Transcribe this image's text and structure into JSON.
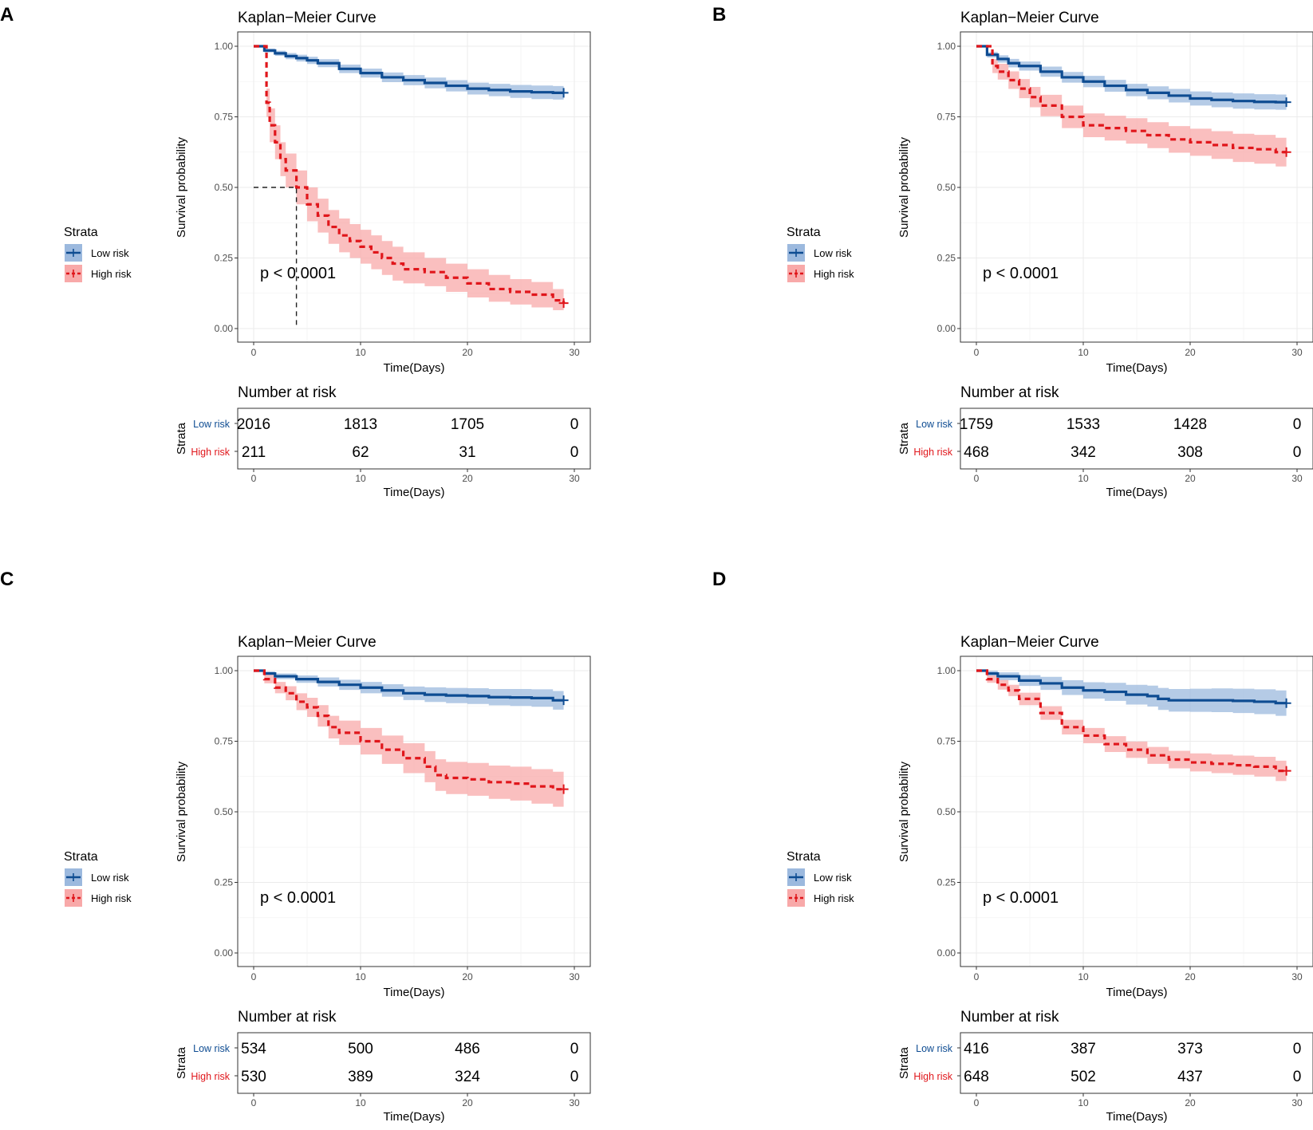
{
  "figure": {
    "common": {
      "title": "Kaplan−Meier Curve",
      "ylabel": "Survival probability",
      "xlabel": "Time(Days)",
      "legend_title": "Strata",
      "legend_labels": [
        "Low risk",
        "High risk"
      ],
      "risk_title": "Number at risk",
      "risk_ylabel": "Strata",
      "risk_row_labels": [
        "Low risk",
        "High risk"
      ],
      "pvalue": "p < 0.0001",
      "y_ticks": [
        "0.00",
        "0.25",
        "0.50",
        "0.75",
        "1.00"
      ],
      "x_ticks": [
        "0",
        "10",
        "20",
        "30"
      ],
      "colors": {
        "low": "#0E4C92",
        "low_band": "#9CB9DE",
        "high": "#E0161B",
        "high_band": "#F8A9A9"
      }
    }
  },
  "chart_data": [
    {
      "panel": "A",
      "type": "line",
      "title": "Kaplan−Meier Curve",
      "xlabel": "Time(Days)",
      "ylabel": "Survival probability",
      "xlim": [
        0,
        30
      ],
      "ylim": [
        0,
        1
      ],
      "pvalue": "p < 0.0001",
      "median_line": {
        "x": 4,
        "y": 0.5
      },
      "series": [
        {
          "name": "Low risk",
          "x": [
            0,
            1,
            2,
            3,
            4,
            5,
            6,
            8,
            10,
            12,
            14,
            16,
            18,
            20,
            22,
            24,
            26,
            28,
            29
          ],
          "y": [
            1.0,
            0.985,
            0.975,
            0.965,
            0.958,
            0.95,
            0.94,
            0.92,
            0.905,
            0.89,
            0.88,
            0.87,
            0.86,
            0.85,
            0.845,
            0.84,
            0.837,
            0.835,
            0.835
          ],
          "lower": [
            1.0,
            0.978,
            0.966,
            0.954,
            0.946,
            0.937,
            0.926,
            0.905,
            0.889,
            0.873,
            0.862,
            0.851,
            0.84,
            0.829,
            0.823,
            0.817,
            0.813,
            0.811,
            0.811
          ],
          "upper": [
            1.0,
            0.992,
            0.984,
            0.976,
            0.97,
            0.963,
            0.954,
            0.935,
            0.921,
            0.907,
            0.898,
            0.889,
            0.88,
            0.871,
            0.867,
            0.863,
            0.861,
            0.859,
            0.859
          ]
        },
        {
          "name": "High risk",
          "x": [
            0,
            1,
            1.2,
            1.5,
            2,
            2.5,
            3,
            4,
            5,
            6,
            7,
            8,
            9,
            10,
            11,
            12,
            13,
            14,
            16,
            18,
            20,
            22,
            24,
            26,
            28,
            29
          ],
          "y": [
            1.0,
            1.0,
            0.8,
            0.72,
            0.66,
            0.6,
            0.56,
            0.5,
            0.44,
            0.4,
            0.36,
            0.33,
            0.31,
            0.29,
            0.27,
            0.25,
            0.23,
            0.21,
            0.2,
            0.18,
            0.16,
            0.14,
            0.13,
            0.12,
            0.1,
            0.09
          ],
          "lower": [
            1.0,
            1.0,
            0.75,
            0.66,
            0.6,
            0.54,
            0.5,
            0.44,
            0.38,
            0.34,
            0.3,
            0.27,
            0.25,
            0.23,
            0.21,
            0.19,
            0.17,
            0.16,
            0.15,
            0.13,
            0.11,
            0.095,
            0.085,
            0.075,
            0.065,
            0.06
          ],
          "upper": [
            1.0,
            1.0,
            0.85,
            0.78,
            0.72,
            0.66,
            0.62,
            0.56,
            0.5,
            0.46,
            0.42,
            0.39,
            0.37,
            0.35,
            0.33,
            0.31,
            0.29,
            0.27,
            0.25,
            0.23,
            0.21,
            0.19,
            0.175,
            0.165,
            0.14,
            0.13
          ]
        }
      ],
      "risk_table": {
        "times": [
          0,
          10,
          20,
          30
        ],
        "low": [
          "2016",
          "1813",
          "1705",
          "0"
        ],
        "high": [
          "211",
          "62",
          "31",
          "0"
        ]
      }
    },
    {
      "panel": "B",
      "type": "line",
      "title": "Kaplan−Meier Curve",
      "xlabel": "Time(Days)",
      "ylabel": "Survival probability",
      "xlim": [
        0,
        30
      ],
      "ylim": [
        0,
        1
      ],
      "pvalue": "p < 0.0001",
      "series": [
        {
          "name": "Low risk",
          "x": [
            0,
            1,
            2,
            3,
            4,
            6,
            8,
            10,
            12,
            14,
            16,
            18,
            20,
            22,
            24,
            26,
            28,
            29
          ],
          "y": [
            1.0,
            0.97,
            0.955,
            0.94,
            0.93,
            0.91,
            0.89,
            0.875,
            0.86,
            0.845,
            0.835,
            0.825,
            0.815,
            0.81,
            0.806,
            0.803,
            0.802,
            0.802
          ],
          "lower": [
            1.0,
            0.96,
            0.942,
            0.925,
            0.914,
            0.892,
            0.871,
            0.855,
            0.839,
            0.823,
            0.812,
            0.801,
            0.79,
            0.784,
            0.779,
            0.776,
            0.775,
            0.775
          ],
          "upper": [
            1.0,
            0.98,
            0.968,
            0.955,
            0.946,
            0.928,
            0.909,
            0.895,
            0.881,
            0.867,
            0.858,
            0.849,
            0.84,
            0.836,
            0.833,
            0.83,
            0.829,
            0.829
          ]
        },
        {
          "name": "High risk",
          "x": [
            0,
            1,
            1.5,
            2,
            3,
            4,
            5,
            6,
            8,
            10,
            12,
            14,
            16,
            18,
            20,
            22,
            24,
            26,
            28,
            29
          ],
          "y": [
            1.0,
            1.0,
            0.93,
            0.91,
            0.88,
            0.85,
            0.82,
            0.79,
            0.75,
            0.72,
            0.71,
            0.7,
            0.685,
            0.67,
            0.66,
            0.65,
            0.64,
            0.635,
            0.625,
            0.625
          ],
          "lower": [
            1.0,
            1.0,
            0.905,
            0.882,
            0.849,
            0.816,
            0.784,
            0.752,
            0.71,
            0.678,
            0.666,
            0.655,
            0.639,
            0.623,
            0.612,
            0.601,
            0.59,
            0.584,
            0.574,
            0.574
          ],
          "upper": [
            1.0,
            1.0,
            0.955,
            0.938,
            0.911,
            0.884,
            0.856,
            0.828,
            0.79,
            0.762,
            0.754,
            0.745,
            0.731,
            0.717,
            0.708,
            0.699,
            0.69,
            0.686,
            0.676,
            0.676
          ]
        }
      ],
      "risk_table": {
        "times": [
          0,
          10,
          20,
          30
        ],
        "low": [
          "1759",
          "1533",
          "1428",
          "0"
        ],
        "high": [
          "468",
          "342",
          "308",
          "0"
        ]
      }
    },
    {
      "panel": "C",
      "type": "line",
      "title": "Kaplan−Meier Curve",
      "xlabel": "Time(Days)",
      "ylabel": "Survival probability",
      "xlim": [
        0,
        30
      ],
      "ylim": [
        0,
        1
      ],
      "pvalue": "p < 0.0001",
      "series": [
        {
          "name": "Low risk",
          "x": [
            0,
            1,
            2,
            4,
            6,
            8,
            10,
            12,
            14,
            16,
            18,
            20,
            22,
            24,
            26,
            28,
            29
          ],
          "y": [
            1.0,
            0.99,
            0.98,
            0.97,
            0.96,
            0.95,
            0.94,
            0.93,
            0.92,
            0.915,
            0.912,
            0.91,
            0.906,
            0.905,
            0.903,
            0.895,
            0.895
          ],
          "lower": [
            1.0,
            0.983,
            0.97,
            0.957,
            0.944,
            0.932,
            0.92,
            0.908,
            0.896,
            0.889,
            0.885,
            0.882,
            0.877,
            0.875,
            0.872,
            0.862,
            0.862
          ],
          "upper": [
            1.0,
            0.997,
            0.99,
            0.983,
            0.976,
            0.968,
            0.96,
            0.952,
            0.944,
            0.941,
            0.939,
            0.938,
            0.935,
            0.935,
            0.934,
            0.928,
            0.928
          ]
        },
        {
          "name": "High risk",
          "x": [
            0,
            1,
            2,
            3,
            4,
            5,
            6,
            7,
            8,
            10,
            12,
            14,
            16,
            17,
            18,
            20,
            22,
            24,
            26,
            28,
            29
          ],
          "y": [
            1.0,
            0.97,
            0.94,
            0.92,
            0.89,
            0.87,
            0.84,
            0.8,
            0.78,
            0.75,
            0.72,
            0.69,
            0.66,
            0.63,
            0.62,
            0.615,
            0.605,
            0.6,
            0.59,
            0.58,
            0.58
          ],
          "lower": [
            1.0,
            0.955,
            0.92,
            0.895,
            0.86,
            0.836,
            0.802,
            0.76,
            0.737,
            0.703,
            0.67,
            0.637,
            0.605,
            0.574,
            0.563,
            0.557,
            0.546,
            0.54,
            0.529,
            0.518,
            0.518
          ],
          "upper": [
            1.0,
            0.985,
            0.96,
            0.945,
            0.92,
            0.904,
            0.878,
            0.84,
            0.823,
            0.797,
            0.77,
            0.743,
            0.715,
            0.686,
            0.677,
            0.673,
            0.664,
            0.66,
            0.651,
            0.642,
            0.642
          ]
        }
      ],
      "risk_table": {
        "times": [
          0,
          10,
          20,
          30
        ],
        "low": [
          "534",
          "500",
          "486",
          "0"
        ],
        "high": [
          "530",
          "389",
          "324",
          "0"
        ]
      }
    },
    {
      "panel": "D",
      "type": "line",
      "title": "Kaplan−Meier Curve",
      "xlabel": "Time(Days)",
      "ylabel": "Survival probability",
      "xlim": [
        0,
        30
      ],
      "ylim": [
        0,
        1
      ],
      "pvalue": "p < 0.0001",
      "series": [
        {
          "name": "Low risk",
          "x": [
            0,
            1,
            2,
            4,
            6,
            8,
            10,
            12,
            14,
            16,
            17,
            18,
            20,
            22,
            24,
            26,
            28,
            29
          ],
          "y": [
            1.0,
            0.99,
            0.98,
            0.965,
            0.955,
            0.94,
            0.93,
            0.925,
            0.915,
            0.91,
            0.9,
            0.895,
            0.895,
            0.895,
            0.893,
            0.89,
            0.885,
            0.885
          ],
          "lower": [
            1.0,
            0.98,
            0.966,
            0.946,
            0.932,
            0.914,
            0.901,
            0.893,
            0.88,
            0.873,
            0.861,
            0.855,
            0.854,
            0.853,
            0.85,
            0.846,
            0.84,
            0.84
          ],
          "upper": [
            1.0,
            1.0,
            0.994,
            0.984,
            0.978,
            0.966,
            0.959,
            0.957,
            0.95,
            0.947,
            0.939,
            0.935,
            0.936,
            0.937,
            0.936,
            0.934,
            0.93,
            0.93
          ]
        },
        {
          "name": "High risk",
          "x": [
            0,
            1,
            2,
            3,
            4,
            6,
            8,
            10,
            12,
            14,
            16,
            18,
            20,
            22,
            24,
            26,
            28,
            29
          ],
          "y": [
            1.0,
            0.97,
            0.95,
            0.93,
            0.9,
            0.85,
            0.8,
            0.77,
            0.74,
            0.72,
            0.7,
            0.685,
            0.675,
            0.67,
            0.665,
            0.66,
            0.645,
            0.645
          ],
          "lower": [
            1.0,
            0.957,
            0.933,
            0.91,
            0.878,
            0.826,
            0.774,
            0.743,
            0.712,
            0.691,
            0.67,
            0.654,
            0.643,
            0.637,
            0.631,
            0.625,
            0.609,
            0.609
          ],
          "upper": [
            1.0,
            0.983,
            0.967,
            0.95,
            0.922,
            0.874,
            0.826,
            0.797,
            0.768,
            0.749,
            0.73,
            0.716,
            0.707,
            0.703,
            0.699,
            0.695,
            0.681,
            0.681
          ]
        }
      ],
      "risk_table": {
        "times": [
          0,
          10,
          20,
          30
        ],
        "low": [
          "416",
          "387",
          "373",
          "0"
        ],
        "high": [
          "648",
          "502",
          "437",
          "0"
        ]
      }
    }
  ]
}
